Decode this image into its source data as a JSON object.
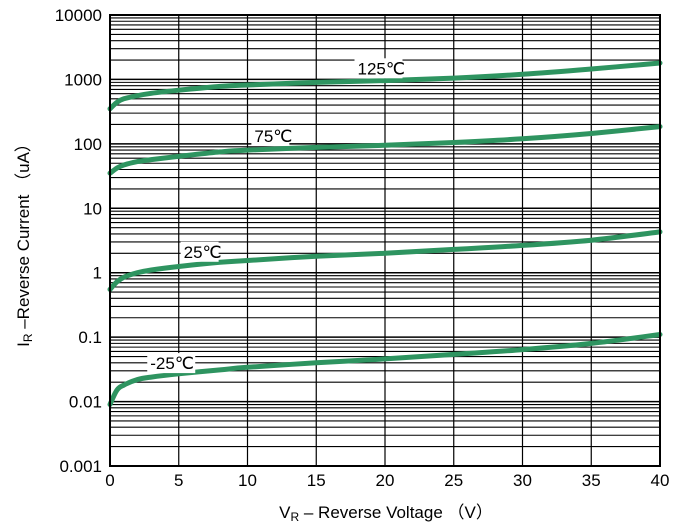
{
  "chart_data": {
    "type": "line",
    "title": "",
    "xlabel": {
      "main": "V",
      "sub": "R",
      "rest": " – Reverse Voltage  （V）"
    },
    "ylabel": {
      "main": "I",
      "sub": "R",
      "rest": " –Reverse Current  （uA）"
    },
    "xlim": [
      0,
      40
    ],
    "ylim": [
      0.001,
      10000
    ],
    "yscale": "log",
    "grid": true,
    "xticks": [
      0,
      5,
      10,
      15,
      20,
      25,
      30,
      35,
      40
    ],
    "xtick_labels": [
      "0",
      "5",
      "10",
      "15",
      "20",
      "25",
      "30",
      "35",
      "40"
    ],
    "yticks": [
      0.001,
      0.01,
      0.1,
      1,
      10,
      100,
      1000,
      10000
    ],
    "ytick_labels": [
      "0.001",
      "0.01",
      "0.1",
      "1",
      "10",
      "100",
      "1000",
      "10000"
    ],
    "line_color": "#2e9460",
    "series": [
      {
        "name": "125℃",
        "x": [
          0,
          0.5,
          1,
          2,
          3,
          5,
          8,
          10,
          15,
          20,
          25,
          30,
          35,
          40
        ],
        "values": [
          350,
          440,
          500,
          560,
          610,
          680,
          780,
          820,
          900,
          960,
          1050,
          1200,
          1450,
          1800
        ]
      },
      {
        "name": "75℃",
        "x": [
          0,
          0.5,
          1,
          2,
          3,
          5,
          8,
          10,
          15,
          20,
          25,
          30,
          35,
          40
        ],
        "values": [
          35,
          42,
          47,
          53,
          57,
          64,
          75,
          80,
          88,
          95,
          105,
          120,
          145,
          185
        ]
      },
      {
        "name": "25℃",
        "x": [
          0,
          0.5,
          1,
          2,
          3,
          5,
          8,
          10,
          15,
          20,
          25,
          30,
          35,
          40
        ],
        "values": [
          0.55,
          0.72,
          0.85,
          1.0,
          1.1,
          1.25,
          1.45,
          1.55,
          1.8,
          2.0,
          2.3,
          2.65,
          3.2,
          4.3
        ]
      },
      {
        "name": "-25℃",
        "x": [
          0,
          0.5,
          1,
          2,
          3,
          5,
          8,
          10,
          15,
          20,
          25,
          30,
          35,
          40
        ],
        "values": [
          0.009,
          0.015,
          0.018,
          0.022,
          0.024,
          0.027,
          0.031,
          0.034,
          0.04,
          0.046,
          0.054,
          0.064,
          0.08,
          0.11
        ]
      }
    ]
  }
}
